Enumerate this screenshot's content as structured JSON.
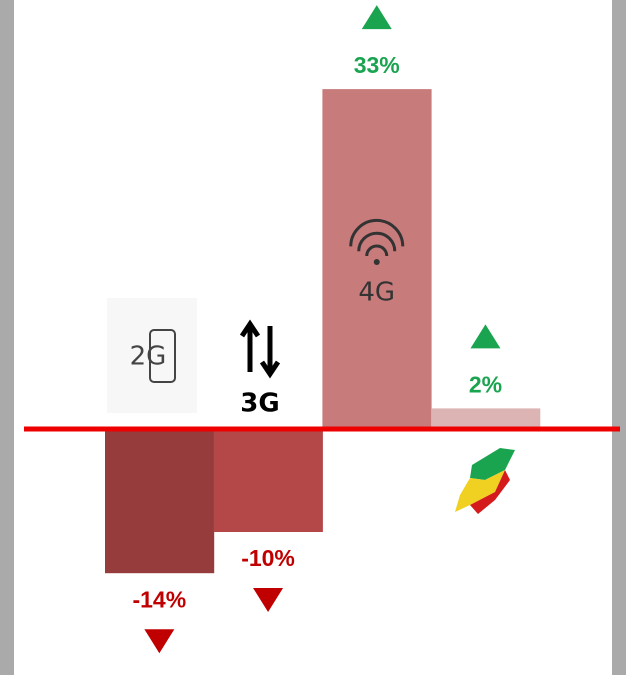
{
  "chart_data": {
    "type": "bar",
    "categories": [
      "2G",
      "3G",
      "4G",
      null
    ],
    "values": [
      -14,
      -10,
      33,
      2
    ],
    "value_labels": [
      "-14%",
      "-10%",
      "33%",
      "2%"
    ],
    "colors": [
      "#963c3c",
      "#b44848",
      "#c87b7b",
      "#dcb4b4"
    ],
    "positive_color": "#1aa450",
    "negative_color": "#c00000",
    "zero_line_color": "#ee0000"
  }
}
